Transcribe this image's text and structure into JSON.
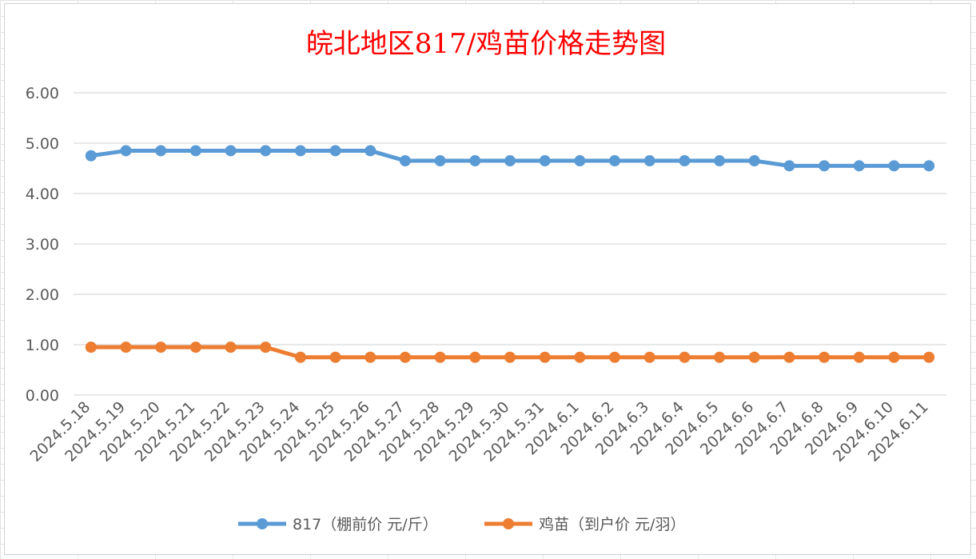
{
  "chart_data": {
    "type": "line",
    "title": "皖北地区817/鸡苗价格走势图",
    "categories": [
      "2024.5.18",
      "2024.5.19",
      "2024.5.20",
      "2024.5.21",
      "2024.5.22",
      "2024.5.23",
      "2024.5.24",
      "2024.5.25",
      "2024.5.26",
      "2024.5.27",
      "2024.5.28",
      "2024.5.29",
      "2024.5.30",
      "2024.5.31",
      "2024.6.1",
      "2024.6.2",
      "2024.6.3",
      "2024.6.4",
      "2024.6.5",
      "2024.6.6",
      "2024.6.7",
      "2024.6.8",
      "2024.6.9",
      "2024.6.10",
      "2024.6.11"
    ],
    "series": [
      {
        "name": "817（棚前价 元/斤）",
        "color": "#5b9bd5",
        "values": [
          4.75,
          4.85,
          4.85,
          4.85,
          4.85,
          4.85,
          4.85,
          4.85,
          4.85,
          4.65,
          4.65,
          4.65,
          4.65,
          4.65,
          4.65,
          4.65,
          4.65,
          4.65,
          4.65,
          4.65,
          4.55,
          4.55,
          4.55,
          4.55,
          4.55
        ]
      },
      {
        "name": "鸡苗（到户价 元/羽）",
        "color": "#ed7d31",
        "values": [
          0.95,
          0.95,
          0.95,
          0.95,
          0.95,
          0.95,
          0.75,
          0.75,
          0.75,
          0.75,
          0.75,
          0.75,
          0.75,
          0.75,
          0.75,
          0.75,
          0.75,
          0.75,
          0.75,
          0.75,
          0.75,
          0.75,
          0.75,
          0.75,
          0.75
        ]
      }
    ],
    "yticks": [
      "6.00",
      "5.00",
      "4.00",
      "3.00",
      "2.00",
      "1.00",
      "0.00"
    ],
    "ylim": [
      0,
      6
    ],
    "grid": true,
    "legend": "bottom",
    "xlabel": "",
    "ylabel": ""
  }
}
